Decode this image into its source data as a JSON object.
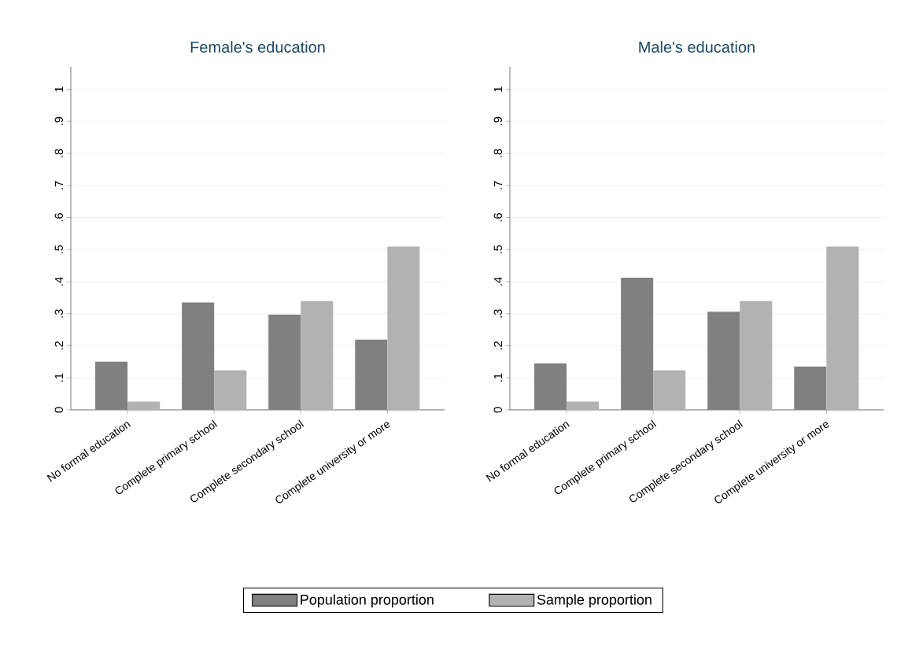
{
  "chart_data": [
    {
      "type": "bar",
      "title": "Female's education",
      "categories": [
        "No formal education",
        "Complete primary school",
        "Complete secondary school",
        "Complete university or more"
      ],
      "series": [
        {
          "name": "Population proportion",
          "color": "#808080",
          "values": [
            0.15,
            0.335,
            0.297,
            0.219
          ]
        },
        {
          "name": "Sample proportion",
          "color": "#b2b2b2",
          "values": [
            0.026,
            0.123,
            0.339,
            0.51
          ]
        }
      ],
      "ylim": [
        0,
        1.07
      ],
      "yticks": [
        0,
        {
          "value": 0.1,
          "label": ".1"
        },
        {
          "value": 0.2,
          "label": ".2"
        },
        {
          "value": 0.3,
          "label": ".3"
        },
        {
          "value": 0.4,
          "label": ".4"
        },
        {
          "value": 0.5,
          "label": ".5"
        },
        {
          "value": 0.6,
          "label": ".6"
        },
        {
          "value": 0.7,
          "label": ".7"
        },
        {
          "value": 0.8,
          "label": ".8"
        },
        {
          "value": 0.9,
          "label": ".9"
        },
        1
      ],
      "grid": "y",
      "legend": "bottom"
    },
    {
      "type": "bar",
      "title": "Male's education",
      "categories": [
        "No formal education",
        "Complete primary school",
        "Complete secondary school",
        "Complete university or more"
      ],
      "series": [
        {
          "color": "#808080",
          "values": [
            0.145,
            0.412,
            0.306,
            0.135
          ]
        },
        {
          "color": "#b2b2b2",
          "values": [
            0.026,
            0.123,
            0.339,
            0.51
          ]
        }
      ],
      "ylim": [
        0,
        1.07
      ],
      "yticks": [
        0,
        {
          "value": 0.1,
          "label": ".1"
        },
        {
          "value": 0.2,
          "label": ".2"
        },
        {
          "value": 0.3,
          "label": ".3"
        },
        {
          "value": 0.4,
          "label": ".4"
        },
        {
          "value": 0.5,
          "label": ".5"
        },
        {
          "value": 0.6,
          "label": ".6"
        },
        {
          "value": 0.7,
          "label": ".7"
        },
        {
          "value": 0.8,
          "label": ".8"
        },
        {
          "value": 0.9,
          "label": ".9"
        },
        1
      ],
      "grid": "y"
    }
  ]
}
